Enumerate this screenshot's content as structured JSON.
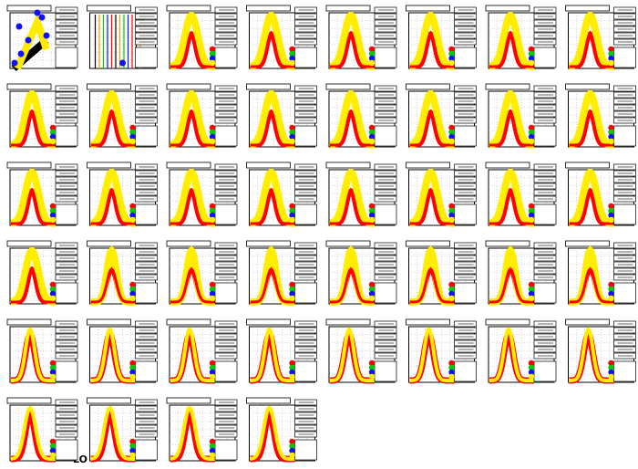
{
  "label": "LO"
}
